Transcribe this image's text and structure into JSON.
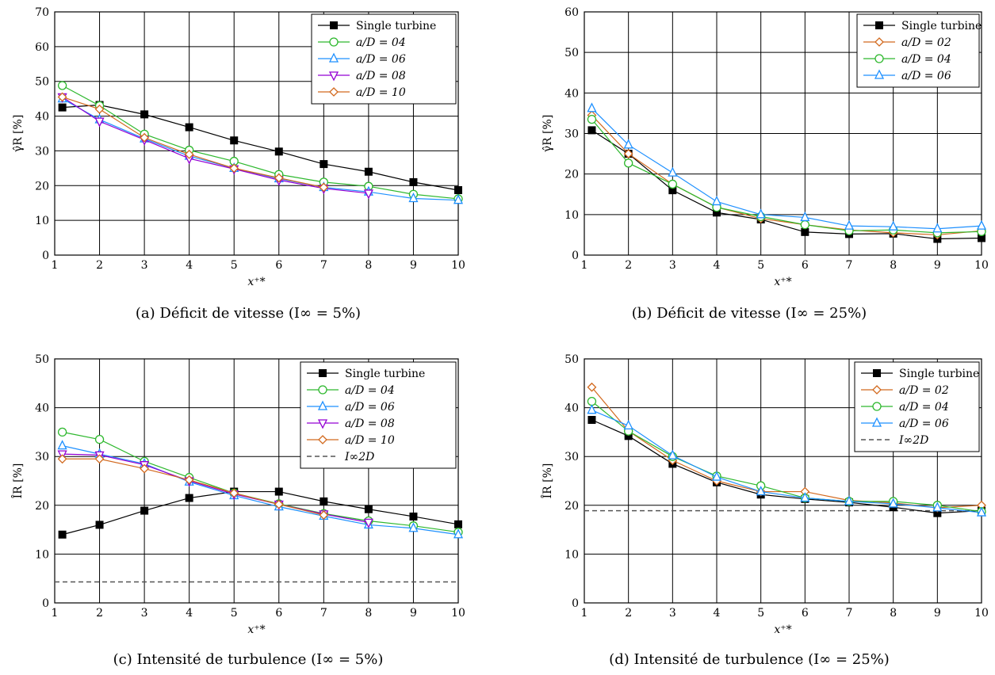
{
  "captions": [
    "(a)  Déficit de vitesse (I∞ = 5%)",
    "(b)  Déficit de vitesse (I∞ = 25%)",
    "(c)  Intensité de turbulence (I∞ = 5%)",
    "(d)  Intensité de turbulence (I∞ = 25%)"
  ],
  "style": {
    "Single turbine": {
      "color": "#000000",
      "marker": "square"
    },
    "a/D = 02": {
      "color": "#d2691e",
      "marker": "diamond"
    },
    "a/D = 04": {
      "color": "#2db82d",
      "marker": "circle"
    },
    "a/D = 06": {
      "color": "#1e90ff",
      "marker": "triangle-up"
    },
    "a/D = 08": {
      "color": "#9400d3",
      "marker": "triangle-down"
    },
    "a/D = 10": {
      "color": "#d2691e",
      "marker": "diamond"
    },
    "I∞2D": {
      "color": "#555555",
      "marker": "dashed"
    }
  },
  "chart_data": [
    {
      "type": "line",
      "xlabel": "x⁺*",
      "ylabel": "γ̂R [%]",
      "xlim": [
        1,
        10
      ],
      "ylim": [
        0,
        70
      ],
      "xticks": [
        1,
        2,
        3,
        4,
        5,
        6,
        7,
        8,
        9,
        10
      ],
      "yticks": [
        0,
        10,
        20,
        30,
        40,
        50,
        60,
        70
      ],
      "grid": true,
      "legend_position": "top-right",
      "x": [
        1.17,
        2,
        3,
        4,
        5,
        6,
        7,
        8,
        9,
        10
      ],
      "series": [
        {
          "name": "Single turbine",
          "values": [
            42.5,
            43.2,
            40.5,
            36.8,
            33.0,
            29.8,
            26.2,
            24.0,
            21.0,
            18.7
          ]
        },
        {
          "name": "a/D = 04",
          "values": [
            48.8,
            43.0,
            34.8,
            30.2,
            27.0,
            23.2,
            21.0,
            19.8,
            17.5,
            16.2
          ]
        },
        {
          "name": "a/D = 06",
          "values": [
            45.0,
            39.0,
            33.5,
            28.5,
            25.0,
            22.0,
            19.5,
            18.2,
            16.3,
            15.8
          ]
        },
        {
          "name": "a/D = 08",
          "values": [
            45.5,
            38.5,
            33.2,
            27.8,
            24.8,
            21.6,
            19.2,
            17.8,
            null,
            null
          ]
        },
        {
          "name": "a/D = 10",
          "values": [
            45.5,
            42.0,
            33.8,
            29.0,
            25.0,
            22.2,
            19.5,
            null,
            null,
            null
          ]
        }
      ]
    },
    {
      "type": "line",
      "xlabel": "x⁺*",
      "ylabel": "γ̂R [%]",
      "xlim": [
        1,
        10
      ],
      "ylim": [
        0,
        60
      ],
      "xticks": [
        1,
        2,
        3,
        4,
        5,
        6,
        7,
        8,
        9,
        10
      ],
      "yticks": [
        0,
        10,
        20,
        30,
        40,
        50,
        60
      ],
      "grid": true,
      "legend_position": "top-right",
      "x": [
        1.17,
        2,
        3,
        4,
        5,
        6,
        7,
        8,
        9,
        10
      ],
      "series": [
        {
          "name": "Single turbine",
          "values": [
            30.8,
            25.0,
            16.0,
            10.5,
            8.8,
            5.7,
            5.2,
            5.3,
            4.0,
            4.2
          ]
        },
        {
          "name": "a/D = 02",
          "values": [
            34.5,
            25.0,
            17.5,
            11.8,
            9.0,
            7.5,
            6.2,
            5.5,
            5.0,
            6.0
          ]
        },
        {
          "name": "a/D = 04",
          "values": [
            33.5,
            22.7,
            17.5,
            11.8,
            9.5,
            7.5,
            6.0,
            6.2,
            5.5,
            5.8
          ]
        },
        {
          "name": "a/D = 06",
          "values": [
            36.2,
            27.2,
            20.3,
            13.2,
            10.0,
            9.3,
            7.2,
            7.0,
            6.5,
            7.2
          ]
        }
      ]
    },
    {
      "type": "line",
      "xlabel": "x⁺*",
      "ylabel": "ÎR [%]",
      "xlim": [
        1,
        10
      ],
      "ylim": [
        0,
        50
      ],
      "xticks": [
        1,
        2,
        3,
        4,
        5,
        6,
        7,
        8,
        9,
        10
      ],
      "yticks": [
        0,
        10,
        20,
        30,
        40,
        50
      ],
      "grid": true,
      "legend_position": "top-right",
      "x": [
        1.17,
        2,
        3,
        4,
        5,
        6,
        7,
        8,
        9,
        10
      ],
      "reference_line": {
        "name": "I∞2D",
        "value": 4.3
      },
      "series": [
        {
          "name": "Single turbine",
          "values": [
            14.0,
            16.0,
            18.9,
            21.5,
            22.8,
            22.8,
            20.8,
            19.2,
            17.7,
            16.1
          ]
        },
        {
          "name": "a/D = 04",
          "values": [
            35.0,
            33.5,
            29.0,
            25.7,
            22.5,
            20.3,
            18.3,
            16.8,
            15.8,
            14.5
          ]
        },
        {
          "name": "a/D = 06",
          "values": [
            32.2,
            30.5,
            28.5,
            24.8,
            22.0,
            19.7,
            17.8,
            16.0,
            15.3,
            14.0
          ]
        },
        {
          "name": "a/D = 08",
          "values": [
            30.5,
            30.3,
            28.3,
            25.0,
            22.3,
            20.2,
            18.2,
            16.5,
            null,
            null
          ]
        },
        {
          "name": "a/D = 10",
          "values": [
            29.5,
            29.5,
            27.5,
            25.2,
            22.5,
            20.2,
            18.0,
            null,
            null,
            null
          ]
        }
      ]
    },
    {
      "type": "line",
      "xlabel": "x⁺*",
      "ylabel": "ÎR [%]",
      "xlim": [
        1,
        10
      ],
      "ylim": [
        0,
        50
      ],
      "xticks": [
        1,
        2,
        3,
        4,
        5,
        6,
        7,
        8,
        9,
        10
      ],
      "yticks": [
        0,
        10,
        20,
        30,
        40,
        50
      ],
      "grid": true,
      "legend_position": "top-right",
      "x": [
        1.17,
        2,
        3,
        4,
        5,
        6,
        7,
        8,
        9,
        10
      ],
      "reference_line": {
        "name": "I∞2D",
        "value": 18.9
      },
      "series": [
        {
          "name": "Single turbine",
          "values": [
            37.5,
            34.2,
            28.5,
            24.7,
            22.2,
            21.3,
            20.6,
            19.6,
            18.4,
            18.9
          ]
        },
        {
          "name": "a/D = 02",
          "values": [
            44.2,
            35.2,
            29.2,
            25.0,
            22.8,
            22.8,
            21.0,
            20.5,
            19.5,
            20.0
          ]
        },
        {
          "name": "a/D = 04",
          "values": [
            41.3,
            35.2,
            30.0,
            26.0,
            24.0,
            21.5,
            20.8,
            20.8,
            20.0,
            18.7
          ]
        },
        {
          "name": "a/D = 06",
          "values": [
            39.5,
            36.3,
            30.2,
            25.8,
            22.8,
            21.5,
            20.8,
            20.3,
            19.5,
            18.5
          ]
        }
      ]
    }
  ]
}
